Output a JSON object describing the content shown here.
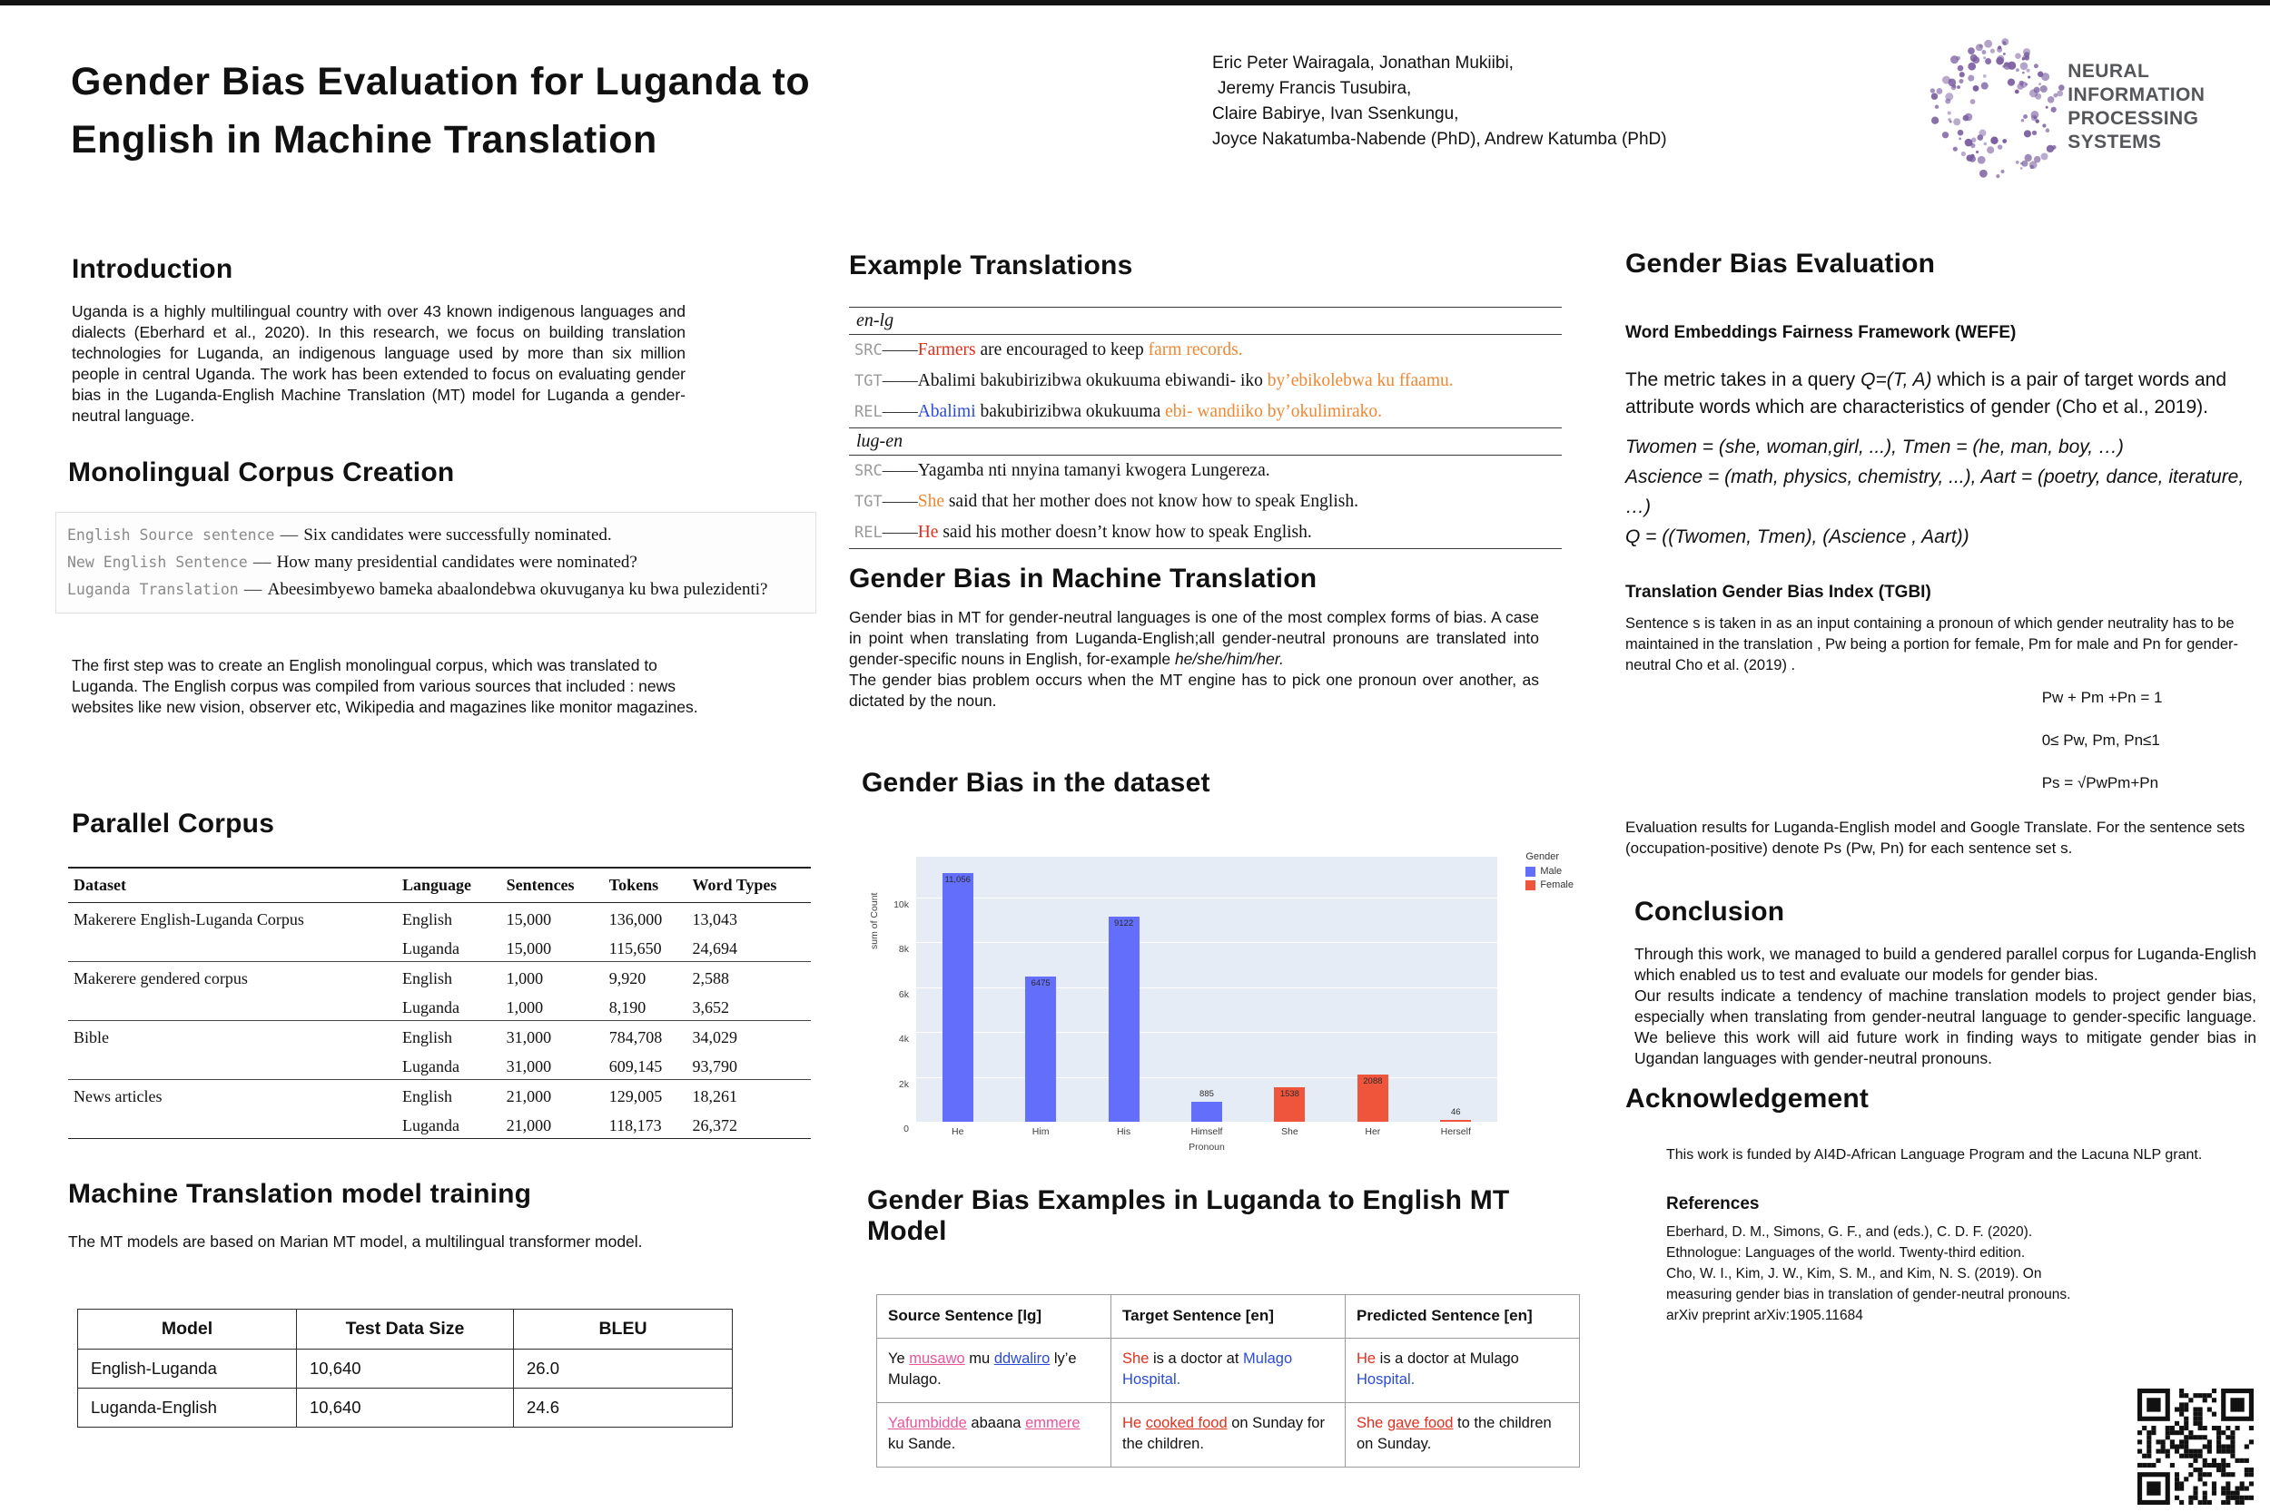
{
  "colors": {
    "highlight_red": "#e0301e",
    "highlight_orange": "#ef8733",
    "highlight_blue": "#2a4bd7",
    "link_pink": "#e8559c",
    "male_bar": "#636efa",
    "female_bar": "#ef553b",
    "logo_purple": "#7a5fa0"
  },
  "header": {
    "title_line1": "Gender Bias Evaluation for Luganda to",
    "title_line2": "English in Machine Translation",
    "authors": [
      "Eric Peter Wairagala,  Jonathan Mukiibi,",
      "Jeremy Francis Tusubira,",
      "Claire Babirye, Ivan Ssenkungu,",
      "Joyce Nakatumba-Nabende (PhD),   Andrew Katumba (PhD)"
    ],
    "logo_line1": "NEURAL INFORMATION",
    "logo_line2": "PROCESSING SYSTEMS"
  },
  "intro": {
    "heading": "Introduction",
    "body": "Uganda is a highly multilingual country with over 43 known indigenous languages and dialects (Eberhard et al., 2020). In this research, we focus on building translation technologies for Luganda, an indigenous language used by more than six million people in central Uganda. The work has been extended to focus on evaluating gender bias in the Luganda-English Machine Translation (MT) model for  Luganda a gender-neutral language."
  },
  "monolingual": {
    "heading": "Monolingual Corpus Creation",
    "dash": "——",
    "rows": [
      {
        "label": "English Source sentence",
        "text": "Six candidates were successfully nominated."
      },
      {
        "label": "New English Sentence",
        "text": "How many presidential candidates were nominated?"
      },
      {
        "label": "Luganda Translation",
        "text": "Abeesimbyewo bameka abaalondebwa okuvuganya ku bwa pulezidenti?"
      }
    ],
    "body": "The first step was to create an English monolingual corpus, which was translated to Luganda. The  English corpus was compiled from various sources that included : news websites like new vision, observer etc, Wikipedia and magazines like monitor magazines."
  },
  "parallel": {
    "heading": "Parallel Corpus",
    "columns": [
      "Dataset",
      "Language",
      "Sentences",
      "Tokens",
      "Word Types"
    ],
    "groups": [
      {
        "dataset": "Makerere English-Luganda Corpus",
        "rows": [
          [
            "English",
            "15,000",
            "136,000",
            "13,043"
          ],
          [
            "Luganda",
            "15,000",
            "115,650",
            "24,694"
          ]
        ]
      },
      {
        "dataset": "Makerere gendered corpus",
        "rows": [
          [
            "English",
            "1,000",
            "9,920",
            "2,588"
          ],
          [
            "Luganda",
            "1,000",
            "8,190",
            "3,652"
          ]
        ]
      },
      {
        "dataset": "Bible",
        "rows": [
          [
            "English",
            "31,000",
            "784,708",
            "34,029"
          ],
          [
            "Luganda",
            "31,000",
            "609,145",
            "93,790"
          ]
        ]
      },
      {
        "dataset": "News articles",
        "rows": [
          [
            "English",
            "21,000",
            "129,005",
            "18,261"
          ],
          [
            "Luganda",
            "21,000",
            "118,173",
            "26,372"
          ]
        ]
      }
    ]
  },
  "mt_training": {
    "heading": "Machine Translation model training",
    "body": "The MT models are based on Marian MT model, a multilingual transformer model.",
    "columns": [
      "Model",
      "Test Data Size",
      "BLEU"
    ],
    "rows": [
      [
        "English-Luganda",
        "10,640",
        "26.0"
      ],
      [
        "Luganda-English",
        "10,640",
        "24.6"
      ]
    ]
  },
  "examples": {
    "heading": "Example Translations",
    "dash": "——",
    "enlg_label": "en-lg",
    "lugen_label": "lug-en",
    "enlg": {
      "src": {
        "label": "SRC",
        "seg_red": "Farmers",
        "seg_plain": " are encouraged to keep ",
        "seg_orange": "farm records."
      },
      "tgt": {
        "label": "TGT",
        "seg_plain": "Abalimi bakubirizibwa okukuuma ebiwandi- iko ",
        "seg_orange": "by’ebikolebwa ku ffaamu."
      },
      "rel": {
        "label": "REL",
        "seg_blue": "Abalimi",
        "seg_plain": " bakubirizibwa okukuuma ",
        "seg_orange": "ebi- wandiiko by’okulimirako."
      }
    },
    "lugen": {
      "src": {
        "label": "SRC",
        "seg_plain": "Yagamba nti nnyina tamanyi kwogera Lungereza."
      },
      "tgt": {
        "label": "TGT",
        "seg_orange": "She",
        "seg_plain": " said that her mother does not know how to speak English."
      },
      "rel": {
        "label": "REL",
        "seg_red": "He",
        "seg_plain": " said his mother doesn’t know how to speak English."
      }
    }
  },
  "gb_mt": {
    "heading": "Gender Bias in Machine Translation",
    "body1": "Gender bias in MT for gender-neutral languages is one of the most complex forms of bias. A case in point when translating from Luganda-English;all gender-neutral pronouns are translated into gender-specific nouns in English, for-example ",
    "italic": "he/she/him/her.",
    "body2": "The gender bias problem occurs when the MT  engine has to pick one pronoun over another, as dictated by the noun."
  },
  "dataset_bias": {
    "heading": "Gender Bias in the dataset"
  },
  "chart_data": {
    "type": "bar",
    "title": "",
    "xlabel": "Pronoun",
    "ylabel": "sum of Count",
    "legend_title": "Gender",
    "legend_items": [
      "Male",
      "Female"
    ],
    "legend_position": "top-right",
    "grid": true,
    "categories": [
      "He",
      "Him",
      "His",
      "Himself",
      "She",
      "Her",
      "Herself"
    ],
    "values": [
      11056,
      6475,
      9122,
      885,
      1538,
      2088,
      46
    ],
    "bar_labels": [
      "11,056",
      "6475",
      "9122",
      "885",
      "1538",
      "2088",
      "46"
    ],
    "genders": [
      "Male",
      "Male",
      "Male",
      "Male",
      "Female",
      "Female",
      "Female"
    ],
    "series_colors": {
      "Male": "#636efa",
      "Female": "#ef553b"
    },
    "ylim": [
      0,
      11800
    ],
    "yticks": [
      {
        "v": 0,
        "label": "0"
      },
      {
        "v": 2000,
        "label": "2k"
      },
      {
        "v": 4000,
        "label": "4k"
      },
      {
        "v": 6000,
        "label": "6k"
      },
      {
        "v": 8000,
        "label": "8k"
      },
      {
        "v": 10000,
        "label": "10k"
      }
    ]
  },
  "mt_examples": {
    "heading": "Gender Bias Examples in Luganda to English MT Model",
    "columns": [
      "Source Sentence [lg]",
      "Target Sentence [en]",
      "Predicted Sentence [en]"
    ],
    "row1": {
      "source": {
        "s0": "Ye ",
        "s1": "musawo",
        "s2": " mu ",
        "s3": "ddwaliro",
        "s4": " ly’e Mulago."
      },
      "target": {
        "s0": "She",
        "s1": " is a doctor at ",
        "s2": "Mulago Hospital."
      },
      "predicted": {
        "s0": "He",
        "s1": " is a doctor at Mulago ",
        "s2": "Hospital."
      }
    },
    "row2": {
      "source": {
        "s0": "Yafumbidde",
        "s1": " abaana ",
        "s2": "emmere",
        "s3": " ku Sande."
      },
      "target": {
        "s0": "He ",
        "s1": "cooked food",
        "s2": " on Sunday for the children."
      },
      "predicted": {
        "s0": "She ",
        "s1": "gave food",
        "s2": " to the children on Sunday."
      }
    }
  },
  "gbe": {
    "heading": "Gender Bias Evaluation",
    "wefe_heading": "Word Embeddings Fairness Framework (WEFE)",
    "wefe_p1": "The metric takes in a query ",
    "wefe_q": "Q=(T, A)",
    "wefe_p2": "  which is a pair of target words and attribute words which are characteristics of gender (Cho et al., 2019).",
    "italic_lines": [
      "Twomen = (she, woman,girl, ...), Tmen = (he, man, boy, …)",
      "Ascience = (math, physics, chemistry, ...), Aart = (poetry, dance, iterature, …)",
      "Q = ((Twomen, Tmen), (Ascience , Aart))"
    ],
    "tgbi_heading": "Translation Gender Bias Index (TGBI)",
    "tgbi_body": "Sentence s is taken in as an input containing a pronoun of which gender neutrality has to be maintained in the translation , Pw being  a portion for female, Pm for male and Pn for gender-neutral Cho et al. (2019) .",
    "formulas": [
      "Pw + Pm +Pn = 1",
      "0≤ Pw, Pm, Pn≤1",
      "Ps = √PwPm+Pn"
    ],
    "eval_note": "Evaluation results for Luganda-English model and Google Translate. For the sentence sets (occupation-positive) denote Ps (Pw, Pn) for each sentence set s."
  },
  "conclusion": {
    "heading": "Conclusion",
    "body1": "Through this work, we managed to build a gendered parallel corpus for Luganda-English which enabled us to test and evaluate our models for gender bias.",
    "body2": "Our results indicate a tendency of machine translation models to project gender bias, especially when translating from gender-neutral language to gender-specific language. We believe this work will aid future work in finding ways to mitigate gender bias in Ugandan languages with gender-neutral pronouns."
  },
  "acknowledgement": {
    "heading": "Acknowledgement",
    "body": "This work is funded by AI4D-African Language Program and the Lacuna NLP grant."
  },
  "references": {
    "heading": "References",
    "items": [
      "Eberhard, D. M., Simons, G. F., and (eds.), C. D. F. (2020). Ethnologue: Languages of the world. Twenty-third edition.",
      "Cho, W. I., Kim, J. W., Kim, S. M., and Kim, N. S. (2019). On measuring gender bias in translation of gender-neutral pronouns. arXiv preprint arXiv:1905.11684"
    ]
  }
}
